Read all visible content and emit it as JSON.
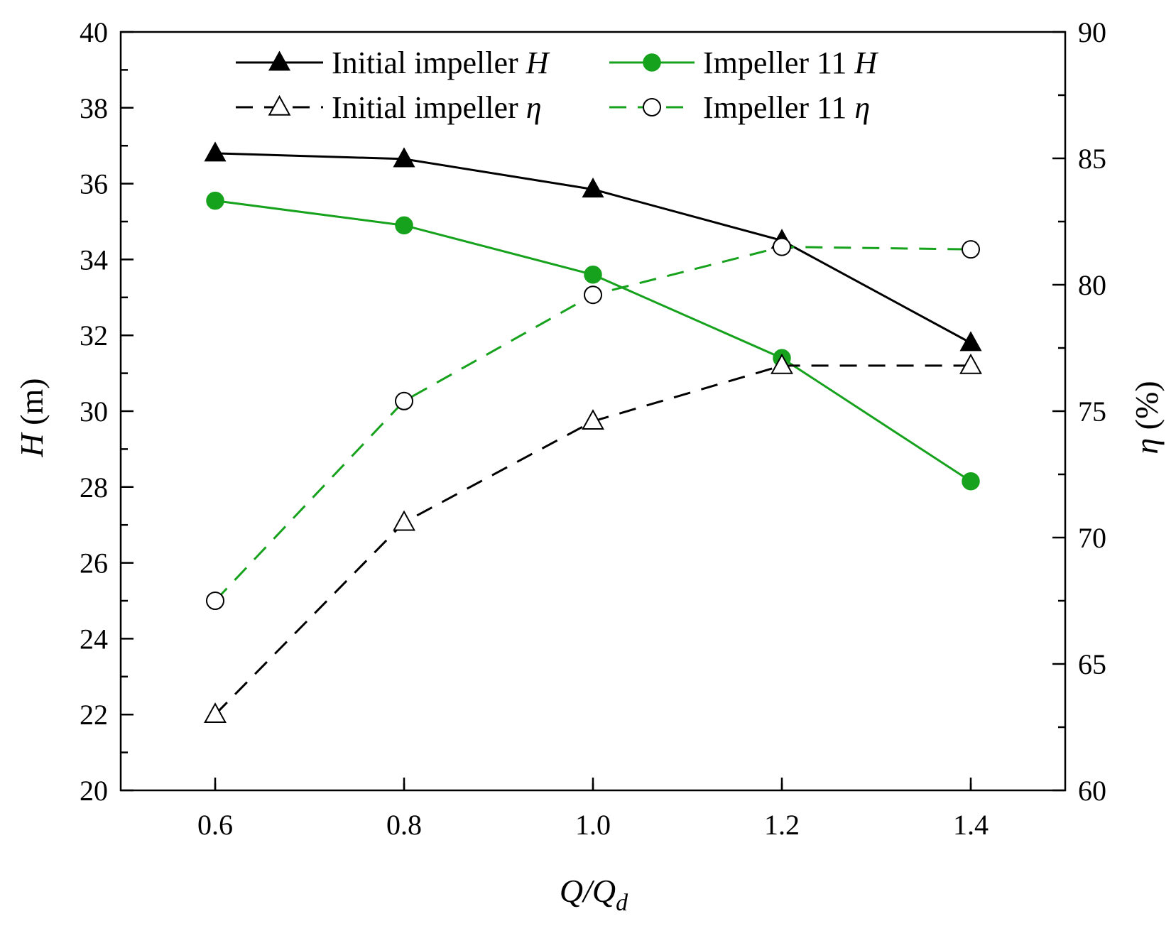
{
  "chart_data": {
    "type": "line",
    "x": [
      0.6,
      0.8,
      1.0,
      1.2,
      1.4
    ],
    "x_ticks": [
      "0.6",
      "0.8",
      "1.0",
      "1.2",
      "1.4"
    ],
    "xlim": [
      0.5,
      1.5
    ],
    "y_left_ticks": [
      "20",
      "22",
      "24",
      "26",
      "28",
      "30",
      "32",
      "34",
      "36",
      "38",
      "40"
    ],
    "ylim_left": [
      20,
      40
    ],
    "y_right_ticks": [
      "60",
      "65",
      "70",
      "75",
      "80",
      "85",
      "90"
    ],
    "ylim_right": [
      60,
      90
    ],
    "xlabel": {
      "main": "Q/Q",
      "sub": "d"
    },
    "ylabel_left": {
      "symbol": "H",
      "unit": " (m)"
    },
    "ylabel_right": {
      "symbol": "η",
      "unit": " (%)"
    },
    "series": [
      {
        "name_text": "Initial impeller ",
        "name_symbol": "H",
        "axis": "left",
        "color": "#000000",
        "dashed": false,
        "marker": "triangle",
        "filled": true,
        "values": [
          36.8,
          36.65,
          35.85,
          34.5,
          31.8
        ]
      },
      {
        "name_text": "Impeller 11 ",
        "name_symbol": "H",
        "axis": "left",
        "color": "#17a21d",
        "dashed": false,
        "marker": "circle",
        "filled": true,
        "values": [
          35.55,
          34.9,
          33.6,
          31.4,
          28.15
        ]
      },
      {
        "name_text": "Initial impeller ",
        "name_symbol": "η",
        "axis": "right",
        "color": "#000000",
        "dashed": true,
        "marker": "triangle",
        "filled": false,
        "values": [
          63.0,
          70.6,
          74.6,
          76.8,
          76.8
        ]
      },
      {
        "name_text": "Impeller 11 ",
        "name_symbol": "η",
        "axis": "right",
        "color": "#17a21d",
        "dashed": true,
        "marker": "circle",
        "filled": false,
        "values": [
          67.5,
          75.4,
          79.6,
          81.5,
          81.4
        ]
      }
    ]
  }
}
